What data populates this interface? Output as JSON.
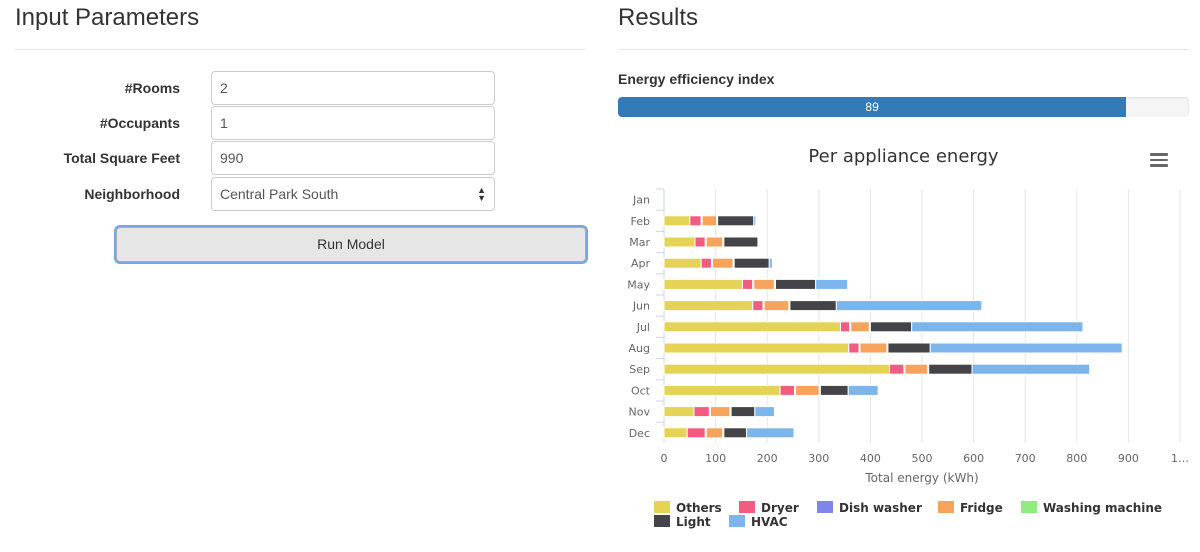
{
  "left": {
    "title": "Input Parameters",
    "fields": [
      {
        "label": "#Rooms",
        "value": "2"
      },
      {
        "label": "#Occupants",
        "value": "1"
      },
      {
        "label": "Total Square Feet",
        "value": "990"
      },
      {
        "label": "Neighborhood",
        "value": "Central Park South"
      }
    ],
    "run_label": "Run Model"
  },
  "right": {
    "title": "Results",
    "efficiency_label": "Energy efficiency index",
    "efficiency_value": "89",
    "efficiency_fraction": 0.89,
    "menu_icon": "hamburger-menu-icon"
  },
  "chart_data": {
    "type": "bar",
    "orientation": "horizontal",
    "stacked": true,
    "title": "Per appliance energy",
    "xlabel": "Total energy (kWh)",
    "ylabel": "",
    "xlim": [
      0,
      1000
    ],
    "x_ticks": [
      "0",
      "100",
      "200",
      "300",
      "400",
      "500",
      "600",
      "700",
      "800",
      "900",
      "1…"
    ],
    "grid": true,
    "legend_position": "bottom",
    "categories": [
      "Jan",
      "Feb",
      "Mar",
      "Apr",
      "May",
      "Jun",
      "Jul",
      "Aug",
      "Sep",
      "Oct",
      "Nov",
      "Dec"
    ],
    "series": [
      {
        "name": "Others",
        "color": "#e4d354",
        "values": [
          0,
          50,
          60,
          72,
          152,
          172,
          342,
          358,
          437,
          225,
          58,
          45
        ]
      },
      {
        "name": "Dryer",
        "color": "#f15c80",
        "values": [
          0,
          22,
          20,
          20,
          20,
          20,
          18,
          20,
          28,
          28,
          30,
          35
        ]
      },
      {
        "name": "Dish washer",
        "color": "#8085e9",
        "values": [
          0,
          2,
          2,
          2,
          2,
          2,
          2,
          2,
          2,
          2,
          2,
          2
        ]
      },
      {
        "name": "Fridge",
        "color": "#f7a35c",
        "values": [
          0,
          28,
          32,
          40,
          40,
          48,
          36,
          52,
          44,
          46,
          38,
          32
        ]
      },
      {
        "name": "Washing machine",
        "color": "#90ed7d",
        "values": [
          0,
          2,
          2,
          2,
          2,
          2,
          2,
          2,
          2,
          2,
          2,
          2
        ]
      },
      {
        "name": "Light",
        "color": "#434348",
        "values": [
          0,
          70,
          66,
          68,
          78,
          90,
          80,
          82,
          84,
          54,
          46,
          44
        ]
      },
      {
        "name": "HVAC",
        "color": "#7cb5ec",
        "values": [
          0,
          4,
          0,
          6,
          62,
          282,
          332,
          372,
          228,
          58,
          38,
          92
        ]
      }
    ]
  }
}
